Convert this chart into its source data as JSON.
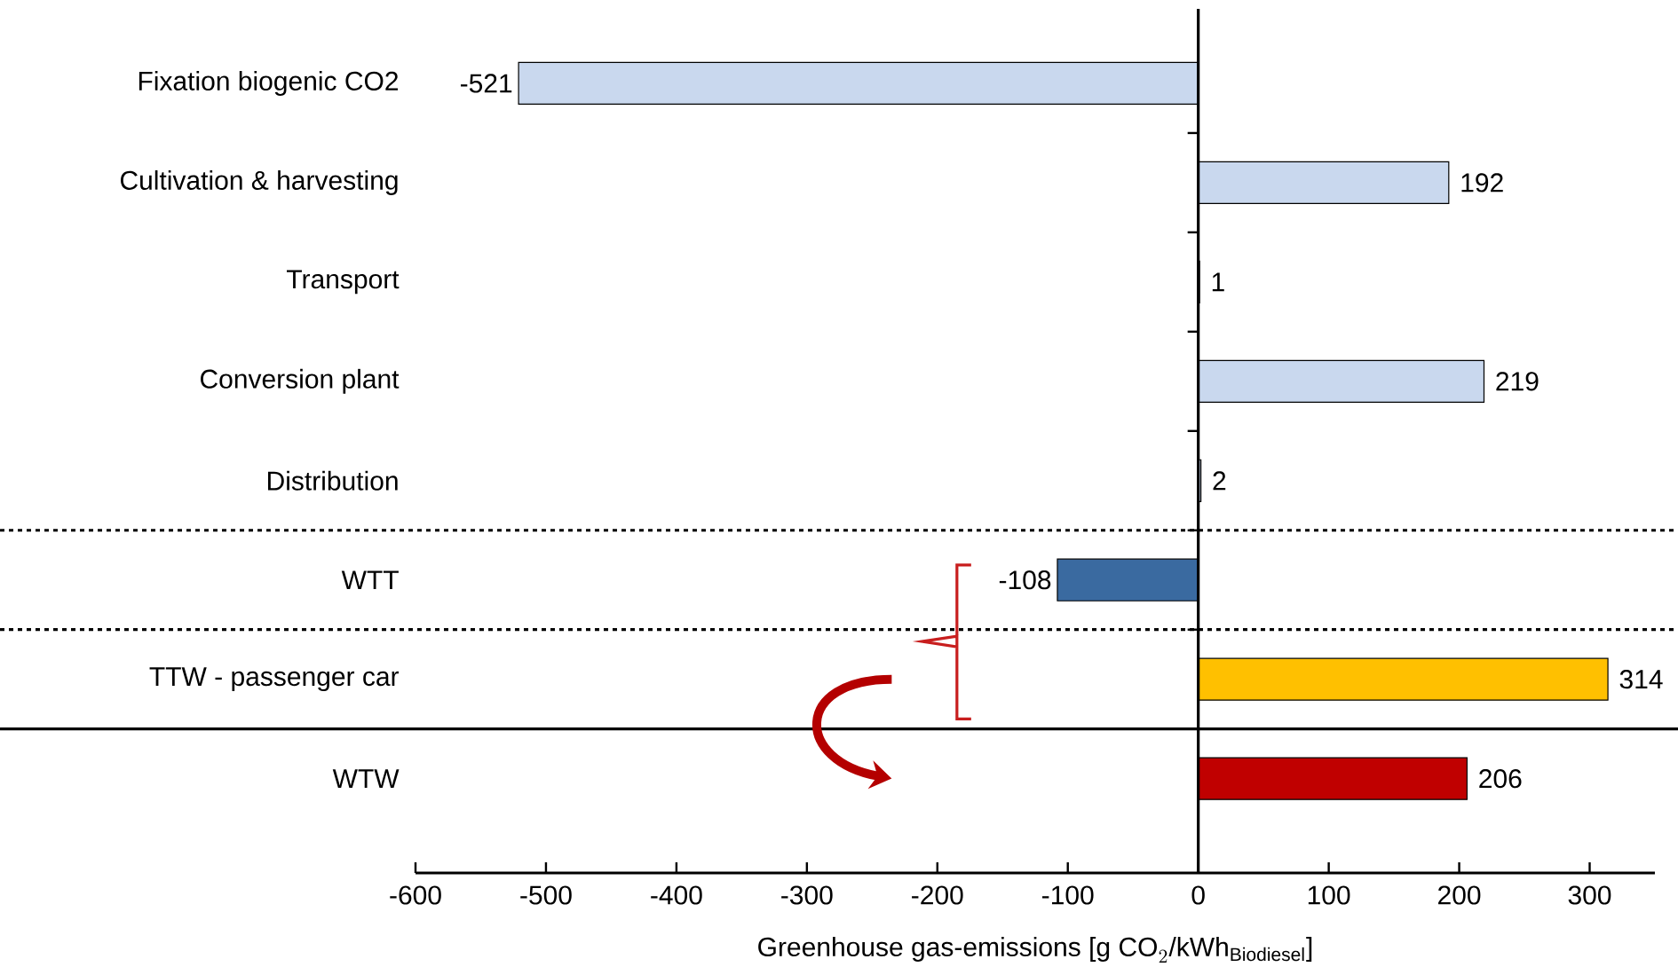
{
  "chart_data": {
    "type": "bar",
    "orientation": "horizontal",
    "categories": [
      "Fixation biogenic CO2",
      "Cultivation & harvesting",
      "Transport",
      "Conversion plant",
      "Distribution",
      "WTT",
      "TTW  - passenger car",
      "WTW"
    ],
    "values": [
      -521,
      192,
      1,
      219,
      2,
      -108,
      314,
      206
    ],
    "colors": [
      "#c9d8ee",
      "#c9d8ee",
      "#c9d8ee",
      "#c9d8ee",
      "#c9d8ee",
      "#3a6aa0",
      "#ffc000",
      "#c00000"
    ],
    "xlim": [
      -600,
      350
    ],
    "xticks": [
      -600,
      -500,
      -400,
      -300,
      -200,
      -100,
      0,
      100,
      200,
      300
    ],
    "xlabel": "\\text{Greenhouse gas-emissions [g CO}_{2}\\text{/kWh}_{\\text{Biodiesel}}\\text{]}",
    "data_labels": true
  }
}
